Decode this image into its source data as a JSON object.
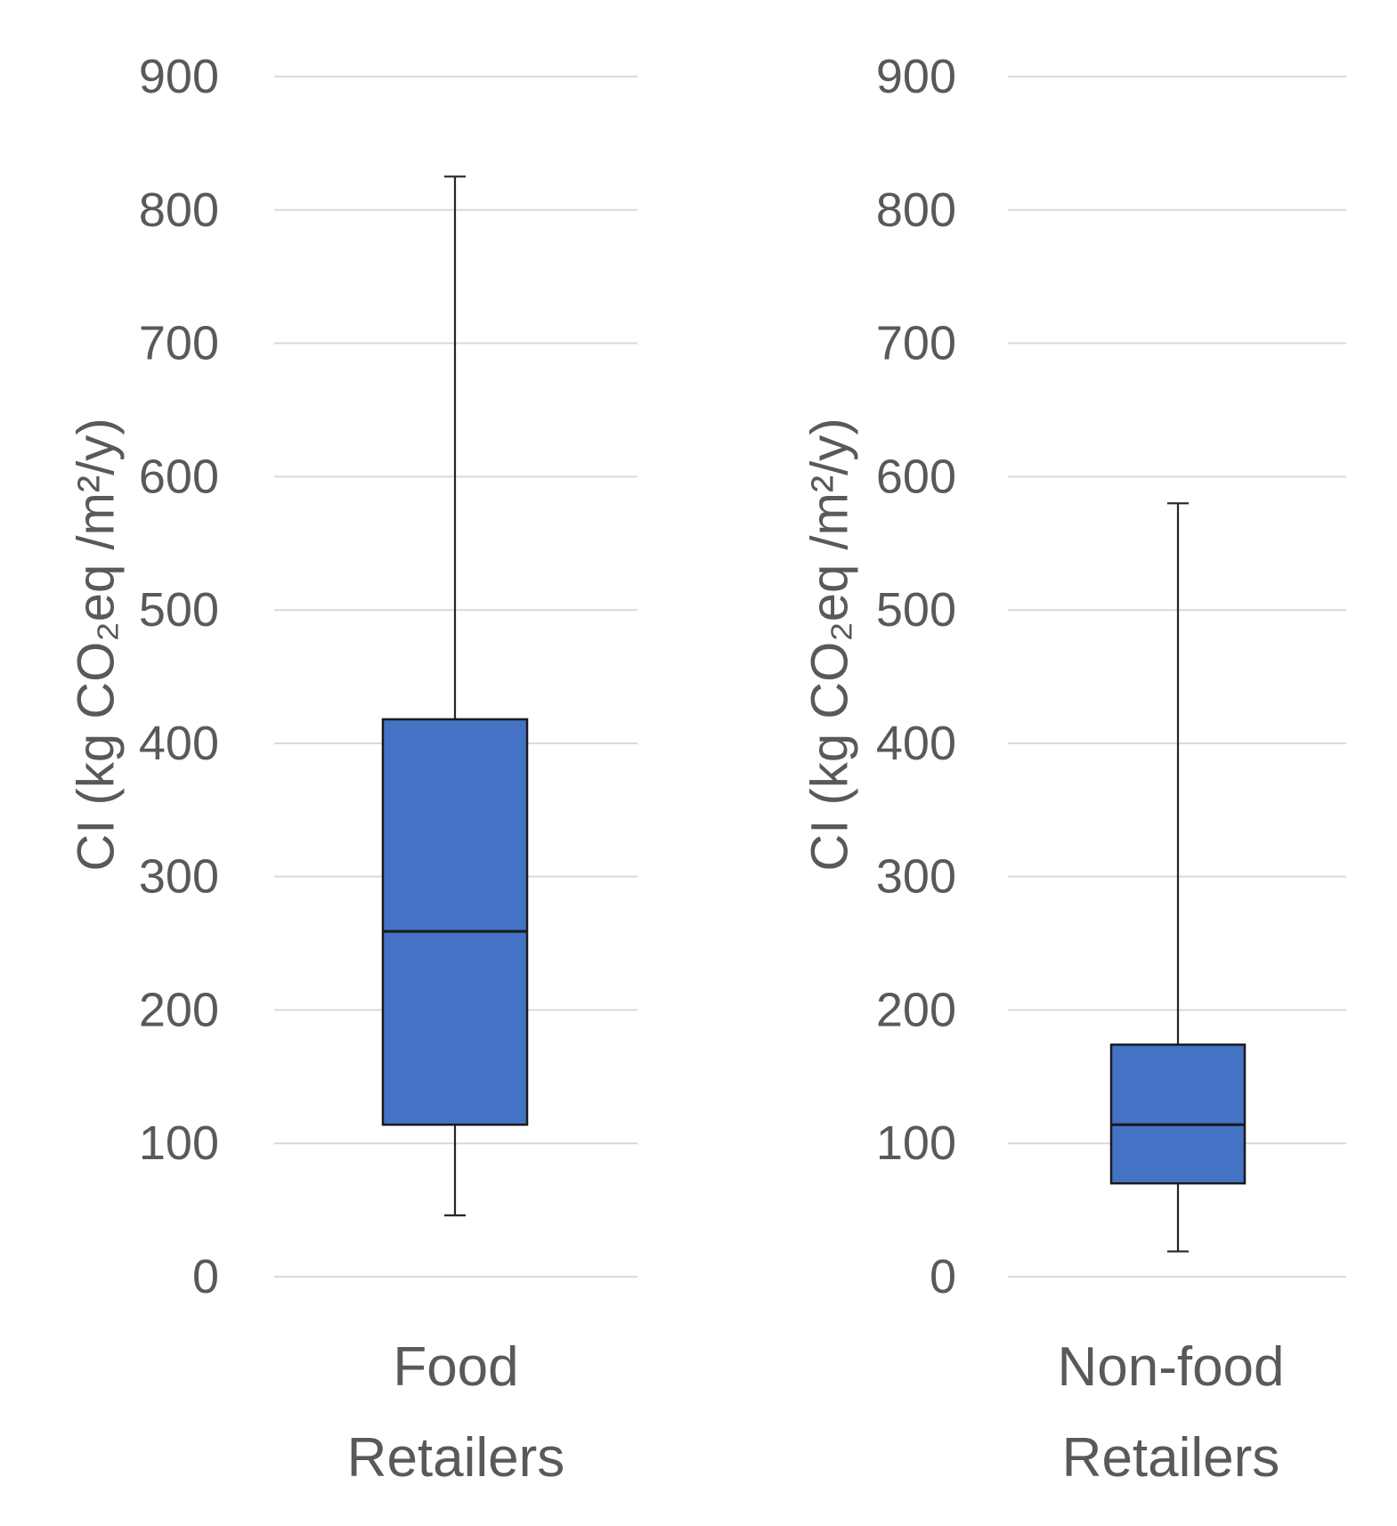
{
  "chart_data": [
    {
      "type": "boxplot",
      "category": [
        "Food",
        "Retailers"
      ],
      "ylabel": "CI (kg CO₂eq /m²/y)",
      "ylim": [
        0,
        900
      ],
      "yticks": [
        0,
        100,
        200,
        300,
        400,
        500,
        600,
        700,
        800,
        900
      ],
      "grid": true,
      "whisker_low": 46,
      "q1": 114,
      "median": 259,
      "q3": 418,
      "whisker_high": 825,
      "color": "#4472c4"
    },
    {
      "type": "boxplot",
      "category": [
        "Non-food",
        "Retailers"
      ],
      "ylabel": "CI (kg CO₂eq /m²/y)",
      "ylim": [
        0,
        900
      ],
      "yticks": [
        0,
        100,
        200,
        300,
        400,
        500,
        600,
        700,
        800,
        900
      ],
      "grid": true,
      "whisker_low": 19,
      "q1": 70,
      "median": 114,
      "q3": 174,
      "whisker_high": 580,
      "color": "#4472c4"
    }
  ]
}
